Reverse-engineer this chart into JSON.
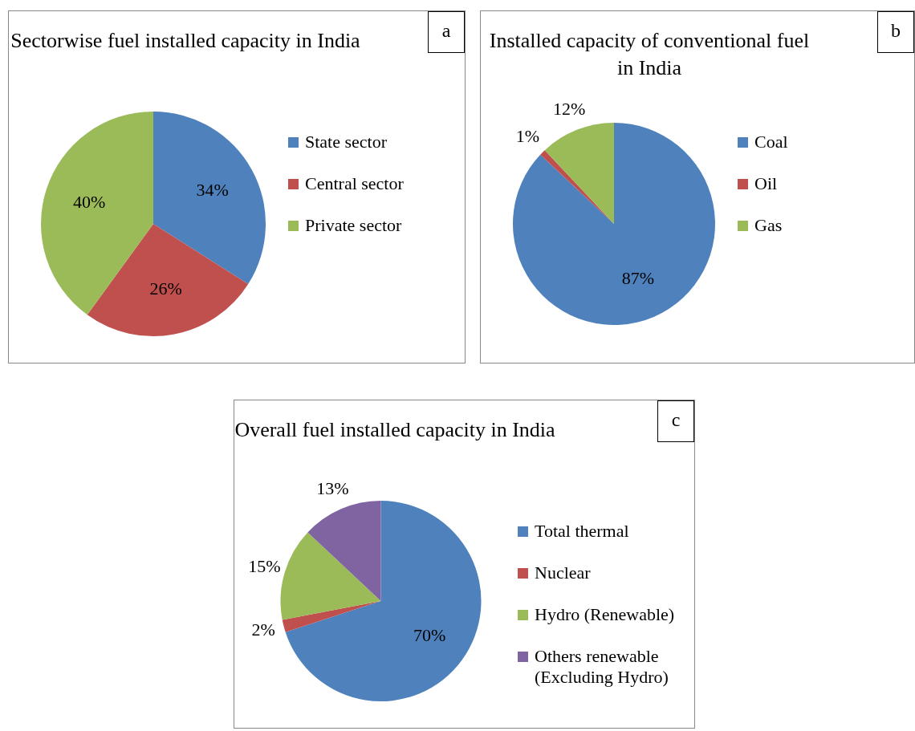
{
  "chart_data": [
    {
      "type": "pie",
      "title": "Sectorwise fuel installed capacity in India",
      "annotations": [
        "a"
      ],
      "categories": [
        "State sector",
        "Central sector",
        "Private sector"
      ],
      "values": [
        34,
        26,
        40
      ],
      "colors": [
        "#4f81bd",
        "#c0504d",
        "#9bbb59"
      ],
      "value_labels": [
        "34%",
        "26%",
        "40%"
      ],
      "legend": "right"
    },
    {
      "type": "pie",
      "title": "Installed capacity of conventional fuel in India",
      "annotations": [
        "b"
      ],
      "categories": [
        "Coal",
        "Oil",
        "Gas"
      ],
      "values": [
        87,
        1,
        12
      ],
      "colors": [
        "#4f81bd",
        "#c0504d",
        "#9bbb59"
      ],
      "value_labels": [
        "87%",
        "1%",
        "12%"
      ],
      "legend": "right"
    },
    {
      "type": "pie",
      "title": "Overall fuel installed capacity in India",
      "annotations": [
        "c"
      ],
      "categories": [
        "Total thermal",
        "Nuclear",
        "Hydro (Renewable)",
        "Others renewable (Excluding Hydro)"
      ],
      "values": [
        70,
        2,
        15,
        13
      ],
      "colors": [
        "#4f81bd",
        "#c0504d",
        "#9bbb59",
        "#8064a2"
      ],
      "value_labels": [
        "70%",
        "2%",
        "15%",
        "13%"
      ],
      "legend": "right"
    }
  ]
}
